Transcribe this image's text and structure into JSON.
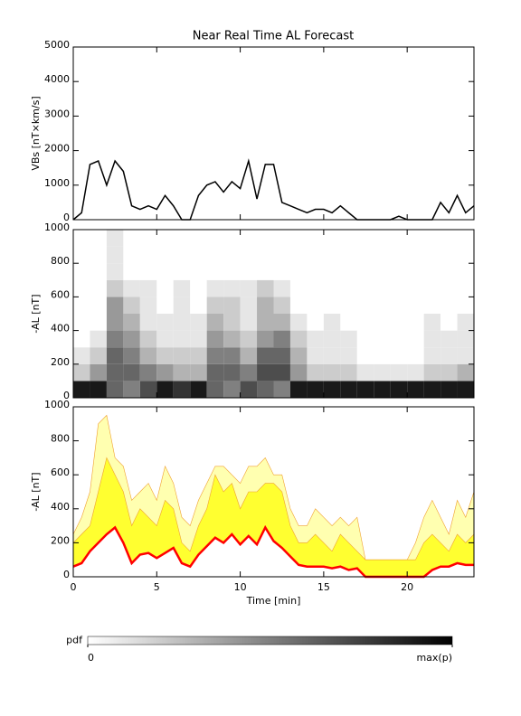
{
  "chart_data": [
    {
      "type": "line",
      "title": "Near Real Time AL Forecast",
      "y_label": "VBs [nT×km/s]",
      "color": "#000000",
      "x": [
        0,
        0.5,
        1,
        1.5,
        2,
        2.5,
        3,
        3.5,
        4,
        4.5,
        5,
        5.5,
        6,
        6.5,
        7,
        7.5,
        8,
        8.5,
        9,
        9.5,
        10,
        10.5,
        11,
        11.5,
        12,
        12.5,
        13,
        13.5,
        14,
        14.5,
        15,
        15.5,
        16,
        16.5,
        17,
        17.5,
        18,
        18.5,
        19,
        19.5,
        20,
        20.5,
        21,
        21.5,
        22,
        22.5,
        23,
        23.5,
        24
      ],
      "values": [
        0,
        200,
        1600,
        1700,
        1000,
        1700,
        1400,
        400,
        300,
        400,
        300,
        700,
        400,
        0,
        0,
        700,
        1000,
        1100,
        800,
        1100,
        900,
        1700,
        600,
        1600,
        1600,
        500,
        400,
        300,
        200,
        300,
        300,
        200,
        400,
        200,
        0,
        0,
        0,
        0,
        0,
        100,
        0,
        0,
        0,
        0,
        500,
        200,
        700,
        200,
        400
      ],
      "xlim": [
        0,
        24
      ],
      "ylim": [
        0,
        5000
      ],
      "yticks": [
        0,
        1000,
        2000,
        3000,
        4000,
        5000
      ]
    },
    {
      "type": "heatmap",
      "y_label": "-AL [nT]",
      "xbins": [
        0,
        1,
        2,
        3,
        4,
        5,
        6,
        7,
        8,
        9,
        10,
        11,
        12,
        13,
        14,
        15,
        16,
        17,
        18,
        19,
        20,
        21,
        22,
        23,
        24
      ],
      "ybins": [
        0,
        100,
        200,
        300,
        400,
        500,
        600,
        700,
        800,
        900,
        1000
      ],
      "z": [
        [
          0.9,
          0.9,
          0.6,
          0.5,
          0.7,
          0.9,
          0.8,
          0.9,
          0.6,
          0.5,
          0.7,
          0.6,
          0.5,
          0.9,
          0.9,
          0.9,
          0.9,
          0.9,
          0.9,
          0.9,
          0.9,
          0.9,
          0.9,
          0.9
        ],
        [
          0.2,
          0.4,
          0.6,
          0.6,
          0.5,
          0.4,
          0.3,
          0.3,
          0.6,
          0.6,
          0.5,
          0.7,
          0.7,
          0.4,
          0.2,
          0.2,
          0.2,
          0.1,
          0.1,
          0.1,
          0.1,
          0.2,
          0.2,
          0.3
        ],
        [
          0.1,
          0.2,
          0.6,
          0.5,
          0.3,
          0.2,
          0.2,
          0.2,
          0.5,
          0.5,
          0.3,
          0.6,
          0.6,
          0.3,
          0.1,
          0.1,
          0.1,
          0,
          0,
          0,
          0,
          0.1,
          0.1,
          0.1
        ],
        [
          0,
          0.1,
          0.5,
          0.4,
          0.2,
          0.1,
          0.1,
          0.1,
          0.4,
          0.3,
          0.2,
          0.4,
          0.5,
          0.2,
          0.1,
          0.1,
          0.1,
          0,
          0,
          0,
          0,
          0.1,
          0.1,
          0.1
        ],
        [
          0,
          0,
          0.4,
          0.3,
          0.1,
          0.1,
          0.1,
          0.1,
          0.3,
          0.2,
          0.1,
          0.3,
          0.3,
          0.1,
          0,
          0.1,
          0,
          0,
          0,
          0,
          0,
          0.1,
          0,
          0.1
        ],
        [
          0,
          0,
          0.4,
          0.2,
          0.1,
          0,
          0.1,
          0,
          0.2,
          0.2,
          0.1,
          0.3,
          0.2,
          0,
          0,
          0,
          0,
          0,
          0,
          0,
          0,
          0,
          0,
          0
        ],
        [
          0,
          0,
          0.2,
          0.1,
          0.1,
          0,
          0.1,
          0,
          0.1,
          0.1,
          0.1,
          0.2,
          0.1,
          0,
          0,
          0,
          0,
          0,
          0,
          0,
          0,
          0,
          0,
          0
        ],
        [
          0,
          0,
          0.1,
          0,
          0,
          0,
          0,
          0,
          0,
          0,
          0,
          0,
          0,
          0,
          0,
          0,
          0,
          0,
          0,
          0,
          0,
          0,
          0,
          0
        ],
        [
          0,
          0,
          0.1,
          0,
          0,
          0,
          0,
          0,
          0,
          0,
          0,
          0,
          0,
          0,
          0,
          0,
          0,
          0,
          0,
          0,
          0,
          0,
          0,
          0
        ],
        [
          0,
          0,
          0.1,
          0,
          0,
          0,
          0,
          0,
          0,
          0,
          0,
          0,
          0,
          0,
          0,
          0,
          0,
          0,
          0,
          0,
          0,
          0,
          0,
          0
        ]
      ],
      "xlim": [
        0,
        24
      ],
      "ylim": [
        0,
        1000
      ],
      "yticks": [
        0,
        200,
        400,
        600,
        800,
        1000
      ],
      "colorbar": {
        "label": "pdf",
        "zlim": [
          0,
          1
        ],
        "ticks": [
          0,
          {
            "value": 1,
            "label": "max(p)"
          }
        ]
      }
    },
    {
      "type": "area",
      "y_label": "-AL [nT]",
      "x_label": "Time [min]",
      "x": [
        0,
        0.5,
        1,
        1.5,
        2,
        2.5,
        3,
        3.5,
        4,
        4.5,
        5,
        5.5,
        6,
        6.5,
        7,
        7.5,
        8,
        8.5,
        9,
        9.5,
        10,
        10.5,
        11,
        11.5,
        12,
        12.5,
        13,
        13.5,
        14,
        14.5,
        15,
        15.5,
        16,
        16.5,
        17,
        17.5,
        18,
        18.5,
        19,
        19.5,
        20,
        20.5,
        21,
        21.5,
        22,
        22.5,
        23,
        23.5,
        24
      ],
      "series": [
        {
          "color": "#ffffb0",
          "values": [
            250,
            350,
            500,
            900,
            950,
            700,
            650,
            450,
            500,
            550,
            450,
            650,
            550,
            350,
            300,
            450,
            550,
            650,
            650,
            600,
            550,
            650,
            650,
            700,
            600,
            600,
            400,
            300,
            300,
            400,
            350,
            300,
            350,
            300,
            350,
            100,
            100,
            100,
            100,
            100,
            100,
            200,
            350,
            450,
            350,
            250,
            450,
            350,
            500
          ]
        },
        {
          "color": "#ffff30",
          "values": [
            200,
            250,
            300,
            500,
            700,
            600,
            500,
            300,
            400,
            350,
            300,
            450,
            400,
            200,
            150,
            300,
            400,
            600,
            500,
            550,
            400,
            500,
            500,
            550,
            550,
            500,
            300,
            200,
            200,
            250,
            200,
            150,
            250,
            200,
            150,
            100,
            100,
            100,
            100,
            100,
            100,
            100,
            200,
            250,
            200,
            150,
            250,
            200,
            250
          ]
        },
        {
          "color": "#ff0000",
          "values": [
            60,
            80,
            150,
            200,
            250,
            290,
            200,
            80,
            130,
            140,
            110,
            140,
            170,
            80,
            60,
            130,
            180,
            230,
            200,
            250,
            190,
            240,
            190,
            290,
            210,
            170,
            120,
            70,
            60,
            60,
            60,
            50,
            60,
            40,
            50,
            0,
            0,
            0,
            0,
            0,
            0,
            0,
            0,
            40,
            60,
            60,
            80,
            70,
            70
          ]
        }
      ],
      "xlim": [
        0,
        24
      ],
      "ylim": [
        0,
        1000
      ],
      "xticks": [
        0,
        5,
        10,
        15,
        20
      ],
      "yticks": [
        0,
        200,
        400,
        600,
        800,
        1000
      ]
    }
  ]
}
